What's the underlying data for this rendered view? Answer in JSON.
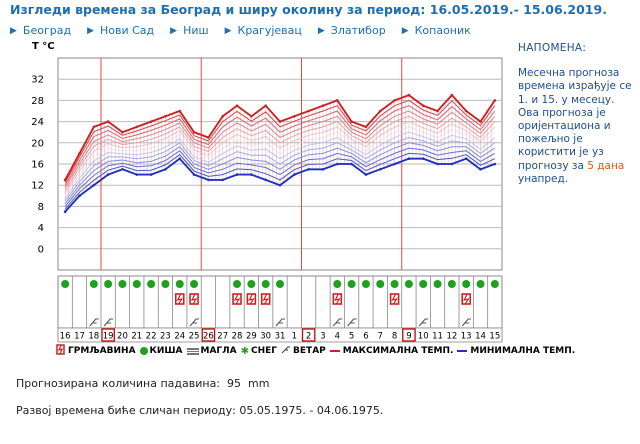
{
  "title": "Изгледи времена за Београд и ширу околину за период: 16.05.2019.- 15.06.2019.",
  "nav": [
    "Београд",
    "Нови Сад",
    "Ниш",
    "Крагујевац",
    "Златибор",
    "Копаоник"
  ],
  "note": {
    "heading": "НАПОМЕНА:",
    "text": "Месечна прогноза времена израђује се 1. и 15. у месецу. Ова прогноза је оријентациона и пожељно је користити је уз прогнозу за",
    "link": "5 дана",
    "tail": "унапред."
  },
  "legend": {
    "thunder": "ГРМЉАВИНА",
    "rain": "КИША",
    "fog": "МАГЛА",
    "snow": "СНЕГ",
    "wind": "ВЕТАР",
    "max": "МАКСИМАЛНА ТЕМП.",
    "min": "МИНИМАЛНА ТЕМП."
  },
  "precip_label": "Прогнозирана количина падавина:",
  "precip_value": "95",
  "precip_unit": "mm",
  "analog_label": "Развој времена биће сличан периоду:",
  "analog_value": "05.05.1975. - 04.06.1975.",
  "colors": {
    "max": "#cc2222",
    "min": "#2233bb",
    "rain": "#1fa01f",
    "thunder": "#cc2222",
    "highlight": "#cc0000"
  },
  "chart_data": {
    "type": "line",
    "ylabel": "T °C",
    "yticks": [
      0,
      4,
      8,
      12,
      16,
      20,
      24,
      28,
      32
    ],
    "ylim": [
      -4,
      36
    ],
    "categories": [
      "16",
      "17",
      "18",
      "19",
      "20",
      "21",
      "22",
      "23",
      "24",
      "25",
      "26",
      "27",
      "28",
      "29",
      "30",
      "31",
      "1",
      "2",
      "3",
      "4",
      "5",
      "6",
      "7",
      "8",
      "9",
      "10",
      "11",
      "12",
      "13",
      "14",
      "15"
    ],
    "highlighted": [
      "19",
      "26",
      "2",
      "9"
    ],
    "month_separators": [
      "19",
      "26",
      "2",
      "9"
    ],
    "series": [
      {
        "name": "МАКСИМАЛНА ТЕМП.",
        "values": [
          13,
          18,
          23,
          24,
          22,
          23,
          24,
          25,
          26,
          22,
          21,
          25,
          27,
          25,
          27,
          24,
          25,
          26,
          27,
          28,
          24,
          23,
          26,
          28,
          29,
          27,
          26,
          29,
          26,
          24,
          28
        ]
      },
      {
        "name": "МИНИМАЛНА ТЕМП.",
        "values": [
          7,
          10,
          12,
          14,
          15,
          14,
          14,
          15,
          17,
          14,
          13,
          13,
          14,
          14,
          13,
          12,
          14,
          15,
          15,
          16,
          16,
          14,
          15,
          16,
          17,
          17,
          16,
          16,
          17,
          15,
          16
        ]
      }
    ],
    "weather": {
      "rain": [
        "16",
        "18",
        "19",
        "20",
        "21",
        "22",
        "23",
        "24",
        "25",
        "28",
        "29",
        "30",
        "31",
        "4",
        "5",
        "6",
        "7",
        "8",
        "9",
        "10",
        "11",
        "12",
        "13",
        "14",
        "15"
      ],
      "thunder": [
        "24",
        "25",
        "28",
        "29",
        "30",
        "4",
        "8",
        "13"
      ],
      "wind": [
        "18",
        "19",
        "25",
        "31",
        "4",
        "5",
        "10",
        "13"
      ]
    }
  }
}
